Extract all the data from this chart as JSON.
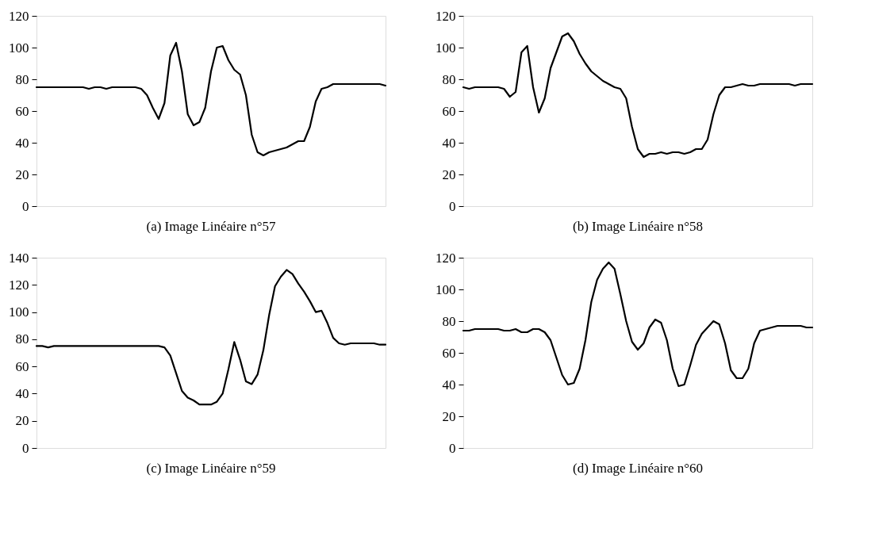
{
  "chart_data": [
    {
      "type": "line",
      "title": "(a) Image Linéaire n°57",
      "categories": [
        null,
        null,
        null,
        null,
        null,
        null,
        null,
        null,
        null,
        null,
        null,
        null,
        null,
        null,
        null,
        null,
        null,
        null,
        null,
        null,
        null,
        null,
        null,
        null,
        null,
        null,
        null,
        null,
        null,
        null,
        null,
        null,
        null,
        null,
        null,
        null,
        null,
        null,
        null,
        null,
        null,
        null,
        null,
        null,
        null,
        null,
        null,
        null,
        null,
        null,
        null,
        null,
        null,
        null,
        null,
        null,
        null,
        null,
        null,
        null,
        null
      ],
      "series": [
        {
          "color": "#000000",
          "values": [
            75,
            75,
            75,
            75,
            75,
            75,
            75,
            75,
            75,
            74,
            75,
            75,
            74,
            75,
            75,
            75,
            75,
            75,
            74,
            70,
            62,
            55,
            65,
            95,
            103,
            85,
            58,
            51,
            53,
            62,
            85,
            100,
            101,
            92,
            86,
            83,
            70,
            45,
            34,
            32,
            34,
            35,
            36,
            37,
            39,
            41,
            41,
            50,
            66,
            74,
            75,
            77,
            77,
            77,
            77,
            77,
            77,
            77,
            77,
            77,
            76
          ]
        }
      ],
      "ylim": [
        0,
        120
      ],
      "yticks": [
        0,
        20,
        40,
        60,
        80,
        100,
        120
      ],
      "grid": false,
      "tick_labels": "y",
      "line_style": "solid",
      "marker": "none"
    },
    {
      "type": "line",
      "title": "(b) Image Linéaire n°58",
      "categories": [
        null,
        null,
        null,
        null,
        null,
        null,
        null,
        null,
        null,
        null,
        null,
        null,
        null,
        null,
        null,
        null,
        null,
        null,
        null,
        null,
        null,
        null,
        null,
        null,
        null,
        null,
        null,
        null,
        null,
        null,
        null,
        null,
        null,
        null,
        null,
        null,
        null,
        null,
        null,
        null,
        null,
        null,
        null,
        null,
        null,
        null,
        null,
        null,
        null,
        null,
        null,
        null,
        null,
        null,
        null,
        null,
        null,
        null,
        null,
        null,
        null
      ],
      "series": [
        {
          "color": "#000000",
          "values": [
            75,
            74,
            75,
            75,
            75,
            75,
            75,
            74,
            69,
            72,
            97,
            101,
            75,
            59,
            68,
            87,
            97,
            107,
            109,
            104,
            96,
            90,
            85,
            82,
            79,
            77,
            75,
            74,
            68,
            50,
            36,
            31,
            33,
            33,
            34,
            33,
            34,
            34,
            33,
            34,
            36,
            36,
            42,
            58,
            70,
            75,
            75,
            76,
            77,
            76,
            76,
            77,
            77,
            77,
            77,
            77,
            77,
            76,
            77,
            77,
            77
          ]
        }
      ],
      "ylim": [
        0,
        120
      ],
      "yticks": [
        0,
        20,
        40,
        60,
        80,
        100,
        120
      ],
      "grid": false,
      "tick_labels": "y",
      "line_style": "solid",
      "marker": "none"
    },
    {
      "type": "line",
      "title": "(c) Image Linéaire n°59",
      "categories": [
        null,
        null,
        null,
        null,
        null,
        null,
        null,
        null,
        null,
        null,
        null,
        null,
        null,
        null,
        null,
        null,
        null,
        null,
        null,
        null,
        null,
        null,
        null,
        null,
        null,
        null,
        null,
        null,
        null,
        null,
        null,
        null,
        null,
        null,
        null,
        null,
        null,
        null,
        null,
        null,
        null,
        null,
        null,
        null,
        null,
        null,
        null,
        null,
        null,
        null,
        null,
        null,
        null,
        null,
        null,
        null,
        null,
        null,
        null,
        null,
        null
      ],
      "series": [
        {
          "color": "#000000",
          "values": [
            75,
            75,
            74,
            75,
            75,
            75,
            75,
            75,
            75,
            75,
            75,
            75,
            75,
            75,
            75,
            75,
            75,
            75,
            75,
            75,
            75,
            75,
            74,
            68,
            55,
            42,
            37,
            35,
            32,
            32,
            32,
            34,
            40,
            58,
            78,
            65,
            49,
            47,
            54,
            72,
            98,
            119,
            126,
            131,
            128,
            121,
            115,
            108,
            100,
            101,
            92,
            81,
            77,
            76,
            77,
            77,
            77,
            77,
            77,
            76,
            76
          ]
        }
      ],
      "ylim": [
        0,
        140
      ],
      "yticks": [
        0,
        20,
        40,
        60,
        80,
        100,
        120,
        140
      ],
      "grid": false,
      "tick_labels": "y",
      "line_style": "solid",
      "marker": "none"
    },
    {
      "type": "line",
      "title": "(d) Image Linéaire n°60",
      "categories": [
        null,
        null,
        null,
        null,
        null,
        null,
        null,
        null,
        null,
        null,
        null,
        null,
        null,
        null,
        null,
        null,
        null,
        null,
        null,
        null,
        null,
        null,
        null,
        null,
        null,
        null,
        null,
        null,
        null,
        null,
        null,
        null,
        null,
        null,
        null,
        null,
        null,
        null,
        null,
        null,
        null,
        null,
        null,
        null,
        null,
        null,
        null,
        null,
        null,
        null,
        null,
        null,
        null,
        null,
        null,
        null,
        null,
        null,
        null,
        null,
        null
      ],
      "series": [
        {
          "color": "#000000",
          "values": [
            74,
            74,
            75,
            75,
            75,
            75,
            75,
            74,
            74,
            75,
            73,
            73,
            75,
            75,
            73,
            68,
            57,
            46,
            40,
            41,
            50,
            68,
            92,
            106,
            113,
            117,
            113,
            97,
            80,
            67,
            62,
            66,
            76,
            81,
            79,
            68,
            50,
            39,
            40,
            52,
            65,
            72,
            76,
            80,
            78,
            66,
            49,
            44,
            44,
            50,
            66,
            74,
            75,
            76,
            77,
            77,
            77,
            77,
            77,
            76,
            76
          ]
        }
      ],
      "ylim": [
        0,
        120
      ],
      "yticks": [
        0,
        20,
        40,
        60,
        80,
        100,
        120
      ],
      "grid": false,
      "tick_labels": "y",
      "line_style": "solid",
      "marker": "none"
    }
  ]
}
